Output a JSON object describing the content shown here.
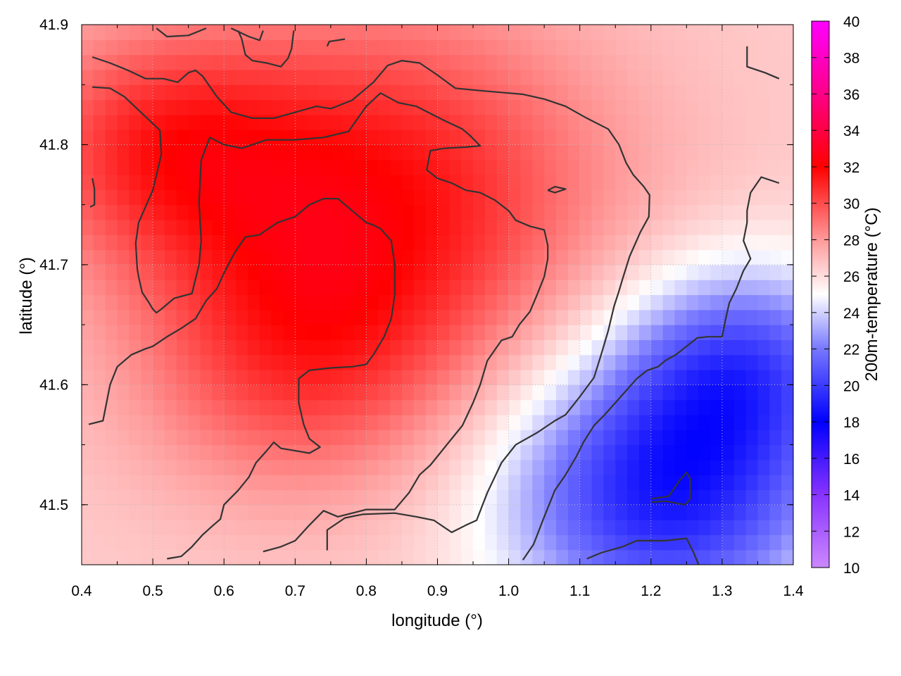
{
  "chart_data": {
    "type": "heatmap",
    "title": "",
    "xlabel": "longitude (°)",
    "ylabel": "latitude (°)",
    "colorbar_label": "200m-temperature (°C)",
    "xlim": [
      0.4,
      1.4
    ],
    "ylim": [
      41.45,
      41.9
    ],
    "x_ticks": [
      "0.4",
      "0.5",
      "0.6",
      "0.7",
      "0.8",
      "0.9",
      "1.0",
      "1.1",
      "1.2",
      "1.3",
      "1.4"
    ],
    "y_ticks": [
      "41.5",
      "41.6",
      "41.7",
      "41.8",
      "41.9"
    ],
    "colorbar_range": [
      10,
      40
    ],
    "colorbar_ticks": [
      "10",
      "12",
      "14",
      "16",
      "18",
      "20",
      "22",
      "24",
      "26",
      "28",
      "30",
      "32",
      "34",
      "36",
      "38",
      "40"
    ],
    "colormap": [
      {
        "value": 10,
        "color": "#cc88ff"
      },
      {
        "value": 14,
        "color": "#8833ff"
      },
      {
        "value": 18,
        "color": "#0000ff"
      },
      {
        "value": 22,
        "color": "#7777ff"
      },
      {
        "value": 25,
        "color": "#ffffff"
      },
      {
        "value": 28,
        "color": "#ff9999"
      },
      {
        "value": 32,
        "color": "#ff0000"
      },
      {
        "value": 36,
        "color": "#ff0088"
      },
      {
        "value": 40,
        "color": "#ff00ff"
      }
    ],
    "grid": true,
    "contour_color": "#333333",
    "field_centers": [
      {
        "x": 0.82,
        "y": 41.76,
        "value": 31.5,
        "spread": 0.22
      },
      {
        "x": 0.5,
        "y": 41.8,
        "value": 30.0,
        "spread": 0.14
      },
      {
        "x": 0.7,
        "y": 41.62,
        "value": 29.5,
        "spread": 0.16
      },
      {
        "x": 1.22,
        "y": 41.51,
        "value": 19.0,
        "spread": 0.16
      },
      {
        "x": 1.33,
        "y": 41.62,
        "value": 21.5,
        "spread": 0.12
      }
    ],
    "field_base": 26.5,
    "contours": [
      [
        [
          0.415,
          41.873
        ],
        [
          0.44,
          41.868
        ],
        [
          0.465,
          41.862
        ],
        [
          0.49,
          41.855
        ],
        [
          0.515,
          41.855
        ],
        [
          0.535,
          41.852
        ],
        [
          0.55,
          41.86
        ],
        [
          0.56,
          41.862
        ],
        [
          0.57,
          41.857
        ],
        [
          0.59,
          41.84
        ],
        [
          0.61,
          41.827
        ],
        [
          0.64,
          41.822
        ],
        [
          0.67,
          41.822
        ],
        [
          0.7,
          41.827
        ],
        [
          0.73,
          41.832
        ],
        [
          0.75,
          41.83
        ],
        [
          0.78,
          41.837
        ],
        [
          0.81,
          41.852
        ],
        [
          0.83,
          41.866
        ],
        [
          0.85,
          41.87
        ],
        [
          0.875,
          41.868
        ],
        [
          0.9,
          41.858
        ],
        [
          0.925,
          41.847
        ],
        [
          0.96,
          41.845
        ],
        [
          1.0,
          41.843
        ],
        [
          1.02,
          41.842
        ],
        [
          1.05,
          41.838
        ],
        [
          1.08,
          41.832
        ],
        [
          1.11,
          41.822
        ],
        [
          1.14,
          41.813
        ],
        [
          1.155,
          41.8
        ],
        [
          1.165,
          41.785
        ],
        [
          1.175,
          41.775
        ],
        [
          1.19,
          41.765
        ],
        [
          1.198,
          41.758
        ],
        [
          1.197,
          41.74
        ],
        [
          1.185,
          41.727
        ],
        [
          1.17,
          41.707
        ],
        [
          1.16,
          41.688
        ],
        [
          1.155,
          41.678
        ],
        [
          1.148,
          41.665
        ],
        [
          1.14,
          41.645
        ],
        [
          1.13,
          41.625
        ],
        [
          1.12,
          41.606
        ],
        [
          1.1,
          41.59
        ],
        [
          1.08,
          41.575
        ],
        [
          1.065,
          41.57
        ],
        [
          1.04,
          41.56
        ],
        [
          1.01,
          41.55
        ],
        [
          0.99,
          41.535
        ],
        [
          0.97,
          41.51
        ],
        [
          0.955,
          41.487
        ],
        [
          0.94,
          41.483
        ],
        [
          0.92,
          41.477
        ],
        [
          0.895,
          41.487
        ],
        [
          0.87,
          41.49
        ],
        [
          0.84,
          41.493
        ],
        [
          0.795,
          41.492
        ],
        [
          0.77,
          41.489
        ],
        [
          0.745,
          41.479
        ],
        [
          0.745,
          41.462
        ]
      ],
      [
        [
          0.415,
          41.848
        ],
        [
          0.44,
          41.847
        ],
        [
          0.46,
          41.84
        ],
        [
          0.485,
          41.826
        ],
        [
          0.51,
          41.812
        ],
        [
          0.512,
          41.792
        ],
        [
          0.51,
          41.787
        ],
        [
          0.5,
          41.762
        ],
        [
          0.48,
          41.735
        ],
        [
          0.476,
          41.718
        ],
        [
          0.478,
          41.697
        ],
        [
          0.48,
          41.69
        ],
        [
          0.485,
          41.677
        ],
        [
          0.495,
          41.668
        ],
        [
          0.5,
          41.663
        ],
        [
          0.505,
          41.66
        ],
        [
          0.512,
          41.663
        ],
        [
          0.53,
          41.672
        ],
        [
          0.555,
          41.676
        ],
        [
          0.565,
          41.7
        ],
        [
          0.568,
          41.72
        ],
        [
          0.565,
          41.752
        ],
        [
          0.568,
          41.787
        ],
        [
          0.58,
          41.806
        ],
        [
          0.6,
          41.8
        ],
        [
          0.625,
          41.797
        ],
        [
          0.66,
          41.804
        ],
        [
          0.7,
          41.804
        ],
        [
          0.74,
          41.806
        ],
        [
          0.775,
          41.811
        ],
        [
          0.8,
          41.832
        ],
        [
          0.82,
          41.843
        ],
        [
          0.845,
          41.835
        ],
        [
          0.87,
          41.832
        ],
        [
          0.89,
          41.826
        ],
        [
          0.91,
          41.82
        ],
        [
          0.935,
          41.813
        ],
        [
          0.945,
          41.808
        ],
        [
          0.96,
          41.799
        ],
        [
          0.94,
          41.798
        ],
        [
          0.91,
          41.797
        ],
        [
          0.89,
          41.795
        ],
        [
          0.885,
          41.779
        ],
        [
          0.9,
          41.772
        ],
        [
          0.92,
          41.768
        ],
        [
          0.94,
          41.762
        ],
        [
          0.96,
          41.76
        ],
        [
          0.98,
          41.754
        ],
        [
          1.0,
          41.745
        ],
        [
          1.01,
          41.737
        ],
        [
          1.03,
          41.732
        ],
        [
          1.05,
          41.729
        ],
        [
          1.055,
          41.716
        ],
        [
          1.055,
          41.705
        ],
        [
          1.05,
          41.69
        ],
        [
          1.04,
          41.675
        ],
        [
          1.03,
          41.661
        ],
        [
          1.015,
          41.65
        ],
        [
          1.005,
          41.64
        ],
        [
          0.99,
          41.637
        ],
        [
          0.97,
          41.62
        ],
        [
          0.96,
          41.6
        ],
        [
          0.95,
          41.585
        ],
        [
          0.935,
          41.566
        ],
        [
          0.92,
          41.555
        ],
        [
          0.89,
          41.533
        ],
        [
          0.875,
          41.525
        ],
        [
          0.86,
          41.51
        ],
        [
          0.84,
          41.496
        ],
        [
          0.8,
          41.496
        ],
        [
          0.76,
          41.49
        ],
        [
          0.74,
          41.495
        ],
        [
          0.72,
          41.483
        ],
        [
          0.7,
          41.47
        ],
        [
          0.68,
          41.465
        ],
        [
          0.655,
          41.461
        ]
      ],
      [
        [
          0.41,
          41.567
        ],
        [
          0.43,
          41.57
        ],
        [
          0.44,
          41.6
        ],
        [
          0.45,
          41.615
        ],
        [
          0.47,
          41.625
        ],
        [
          0.49,
          41.63
        ],
        [
          0.5,
          41.632
        ],
        [
          0.52,
          41.64
        ],
        [
          0.54,
          41.647
        ],
        [
          0.56,
          41.655
        ],
        [
          0.575,
          41.67
        ],
        [
          0.59,
          41.68
        ],
        [
          0.6,
          41.693
        ],
        [
          0.615,
          41.71
        ],
        [
          0.63,
          41.723
        ],
        [
          0.65,
          41.725
        ],
        [
          0.675,
          41.735
        ],
        [
          0.7,
          41.74
        ],
        [
          0.72,
          41.75
        ],
        [
          0.74,
          41.755
        ],
        [
          0.76,
          41.755
        ],
        [
          0.78,
          41.745
        ],
        [
          0.8,
          41.735
        ],
        [
          0.81,
          41.733
        ],
        [
          0.82,
          41.73
        ],
        [
          0.835,
          41.72
        ],
        [
          0.84,
          41.7
        ],
        [
          0.84,
          41.675
        ],
        [
          0.835,
          41.655
        ],
        [
          0.825,
          41.64
        ],
        [
          0.81,
          41.625
        ],
        [
          0.8,
          41.617
        ],
        [
          0.78,
          41.615
        ],
        [
          0.75,
          41.614
        ],
        [
          0.72,
          41.612
        ],
        [
          0.705,
          41.605
        ],
        [
          0.705,
          41.585
        ],
        [
          0.712,
          41.567
        ],
        [
          0.72,
          41.555
        ],
        [
          0.735,
          41.548
        ],
        [
          0.72,
          41.543
        ],
        [
          0.7,
          41.545
        ],
        [
          0.68,
          41.547
        ],
        [
          0.67,
          41.552
        ],
        [
          0.66,
          41.545
        ],
        [
          0.645,
          41.535
        ],
        [
          0.635,
          41.523
        ],
        [
          0.62,
          41.512
        ],
        [
          0.6,
          41.5
        ],
        [
          0.595,
          41.488
        ],
        [
          0.585,
          41.483
        ],
        [
          0.57,
          41.475
        ],
        [
          0.555,
          41.465
        ],
        [
          0.54,
          41.457
        ],
        [
          0.52,
          41.455
        ]
      ],
      [
        [
          1.02,
          41.454
        ],
        [
          1.035,
          41.467
        ],
        [
          1.05,
          41.49
        ],
        [
          1.065,
          41.512
        ],
        [
          1.08,
          41.525
        ],
        [
          1.095,
          41.54
        ],
        [
          1.105,
          41.552
        ],
        [
          1.12,
          41.566
        ],
        [
          1.135,
          41.575
        ],
        [
          1.15,
          41.585
        ],
        [
          1.165,
          41.595
        ],
        [
          1.18,
          41.605
        ],
        [
          1.195,
          41.612
        ],
        [
          1.21,
          41.615
        ],
        [
          1.22,
          41.62
        ],
        [
          1.235,
          41.625
        ],
        [
          1.25,
          41.632
        ],
        [
          1.265,
          41.639
        ],
        [
          1.28,
          41.64
        ],
        [
          1.3,
          41.64
        ],
        [
          1.305,
          41.655
        ],
        [
          1.31,
          41.668
        ],
        [
          1.32,
          41.68
        ],
        [
          1.33,
          41.695
        ],
        [
          1.34,
          41.705
        ],
        [
          1.33,
          41.72
        ],
        [
          1.335,
          41.735
        ],
        [
          1.335,
          41.745
        ],
        [
          1.34,
          41.76
        ],
        [
          1.355,
          41.773
        ],
        [
          1.38,
          41.768
        ]
      ],
      [
        [
          0.62,
          41.895
        ],
        [
          0.625,
          41.888
        ],
        [
          0.63,
          41.875
        ],
        [
          0.64,
          41.87
        ],
        [
          0.66,
          41.868
        ],
        [
          0.68,
          41.865
        ],
        [
          0.69,
          41.872
        ],
        [
          0.695,
          41.88
        ],
        [
          0.698,
          41.895
        ]
      ],
      [
        [
          0.505,
          41.897
        ],
        [
          0.52,
          41.89
        ],
        [
          0.55,
          41.891
        ],
        [
          0.575,
          41.897
        ]
      ],
      [
        [
          0.61,
          41.897
        ],
        [
          0.635,
          41.89
        ],
        [
          0.65,
          41.887
        ],
        [
          0.655,
          41.895
        ]
      ],
      [
        [
          0.745,
          41.882
        ],
        [
          0.748,
          41.886
        ],
        [
          0.77,
          41.888
        ]
      ],
      [
        [
          1.335,
          41.882
        ],
        [
          1.335,
          41.865
        ],
        [
          1.36,
          41.86
        ],
        [
          1.38,
          41.855
        ]
      ],
      [
        [
          0.415,
          41.772
        ],
        [
          0.418,
          41.763
        ],
        [
          0.418,
          41.75
        ],
        [
          0.412,
          41.748
        ]
      ],
      [
        [
          1.055,
          41.762
        ],
        [
          1.065,
          41.765
        ],
        [
          1.08,
          41.763
        ],
        [
          1.065,
          41.76
        ],
        [
          1.055,
          41.762
        ]
      ],
      [
        [
          1.2,
          41.505
        ],
        [
          1.225,
          41.507
        ],
        [
          1.24,
          41.52
        ],
        [
          1.25,
          41.527
        ],
        [
          1.255,
          41.522
        ],
        [
          1.255,
          41.505
        ],
        [
          1.248,
          41.5
        ],
        [
          1.22,
          41.503
        ],
        [
          1.2,
          41.502
        ]
      ],
      [
        [
          1.11,
          41.455
        ],
        [
          1.13,
          41.46
        ],
        [
          1.16,
          41.465
        ],
        [
          1.18,
          41.47
        ],
        [
          1.22,
          41.47
        ],
        [
          1.25,
          41.472
        ],
        [
          1.26,
          41.46
        ],
        [
          1.267,
          41.45
        ]
      ]
    ]
  }
}
